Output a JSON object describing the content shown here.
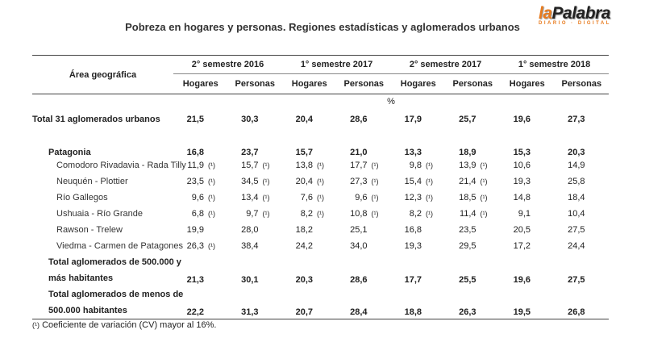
{
  "title": "Pobreza en hogares y personas. Regiones estadísticas y aglomerados urbanos",
  "logo": {
    "prefix": "la",
    "name": "Palabra",
    "tagline": "DIARIO · DIGITAL"
  },
  "table": {
    "area_header": "Área geográfica",
    "periods": [
      "2° semestre 2016",
      "1° semestre 2017",
      "2° semestre 2017",
      "1° semestre 2018"
    ],
    "subheaders": [
      "Hogares",
      "Personas",
      "Hogares",
      "Personas",
      "Hogares",
      "Personas",
      "Hogares",
      "Personas"
    ],
    "unit": "%",
    "cv_marker": "(¹)",
    "rows": [
      {
        "label": "Total 31 aglomerados urbanos",
        "bold": true,
        "level": 0,
        "values": [
          "21,5",
          "30,3",
          "20,4",
          "28,6",
          "17,9",
          "25,7",
          "19,6",
          "27,3"
        ],
        "cv": [
          0,
          0,
          0,
          0,
          0,
          0,
          0,
          0
        ]
      },
      {
        "label": "Patagonia",
        "bold": true,
        "level": 1,
        "values": [
          "16,8",
          "23,7",
          "15,7",
          "21,0",
          "13,3",
          "18,9",
          "15,3",
          "20,3"
        ],
        "cv": [
          0,
          0,
          0,
          0,
          0,
          0,
          0,
          0
        ]
      },
      {
        "label": "Comodoro Rivadavia - Rada Tilly",
        "bold": false,
        "level": 2,
        "values": [
          "11,9",
          "15,7",
          "13,8",
          "17,7",
          "9,8",
          "13,9",
          "10,6",
          "14,9"
        ],
        "cv": [
          1,
          1,
          1,
          1,
          1,
          1,
          0,
          0
        ]
      },
      {
        "label": "Neuquén - Plottier",
        "bold": false,
        "level": 2,
        "values": [
          "23,5",
          "34,5",
          "20,4",
          "27,3",
          "15,4",
          "21,4",
          "19,3",
          "25,8"
        ],
        "cv": [
          1,
          1,
          1,
          1,
          1,
          1,
          0,
          0
        ]
      },
      {
        "label": "Río Gallegos",
        "bold": false,
        "level": 2,
        "values": [
          "9,6",
          "13,4",
          "7,6",
          "9,6",
          "12,3",
          "18,5",
          "14,8",
          "18,4"
        ],
        "cv": [
          1,
          1,
          1,
          1,
          1,
          1,
          0,
          0
        ]
      },
      {
        "label": "Ushuaia - Río Grande",
        "bold": false,
        "level": 2,
        "values": [
          "6,8",
          "9,7",
          "8,2",
          "10,8",
          "8,2",
          "11,4",
          "9,1",
          "10,4"
        ],
        "cv": [
          1,
          1,
          1,
          1,
          1,
          1,
          0,
          0
        ]
      },
      {
        "label": "Rawson - Trelew",
        "bold": false,
        "level": 2,
        "values": [
          "19,9",
          "28,0",
          "18,2",
          "25,1",
          "16,8",
          "23,5",
          "20,5",
          "27,5"
        ],
        "cv": [
          0,
          0,
          0,
          0,
          0,
          0,
          0,
          0
        ]
      },
      {
        "label": "Viedma - Carmen de Patagones",
        "bold": false,
        "level": 2,
        "values": [
          "26,3",
          "38,4",
          "24,2",
          "34,0",
          "19,3",
          "29,5",
          "17,2",
          "24,4"
        ],
        "cv": [
          1,
          0,
          0,
          0,
          0,
          0,
          0,
          0
        ]
      },
      {
        "label": "Total aglomerados de 500.000 y",
        "label2": "más habitantes",
        "bold": true,
        "level": 1,
        "values": [
          "21,3",
          "30,1",
          "20,3",
          "28,6",
          "17,7",
          "25,5",
          "19,6",
          "27,5"
        ],
        "cv": [
          0,
          0,
          0,
          0,
          0,
          0,
          0,
          0
        ]
      },
      {
        "label": "Total aglomerados de menos de",
        "label2": "500.000 habitantes",
        "bold": true,
        "level": 1,
        "values": [
          "22,2",
          "31,3",
          "20,7",
          "28,4",
          "18,8",
          "26,3",
          "19,5",
          "26,8"
        ],
        "cv": [
          0,
          0,
          0,
          0,
          0,
          0,
          0,
          0
        ]
      }
    ]
  },
  "footnote": {
    "marker": "(¹)",
    "text": "Coeficiente de variación (CV) mayor al 16%."
  }
}
